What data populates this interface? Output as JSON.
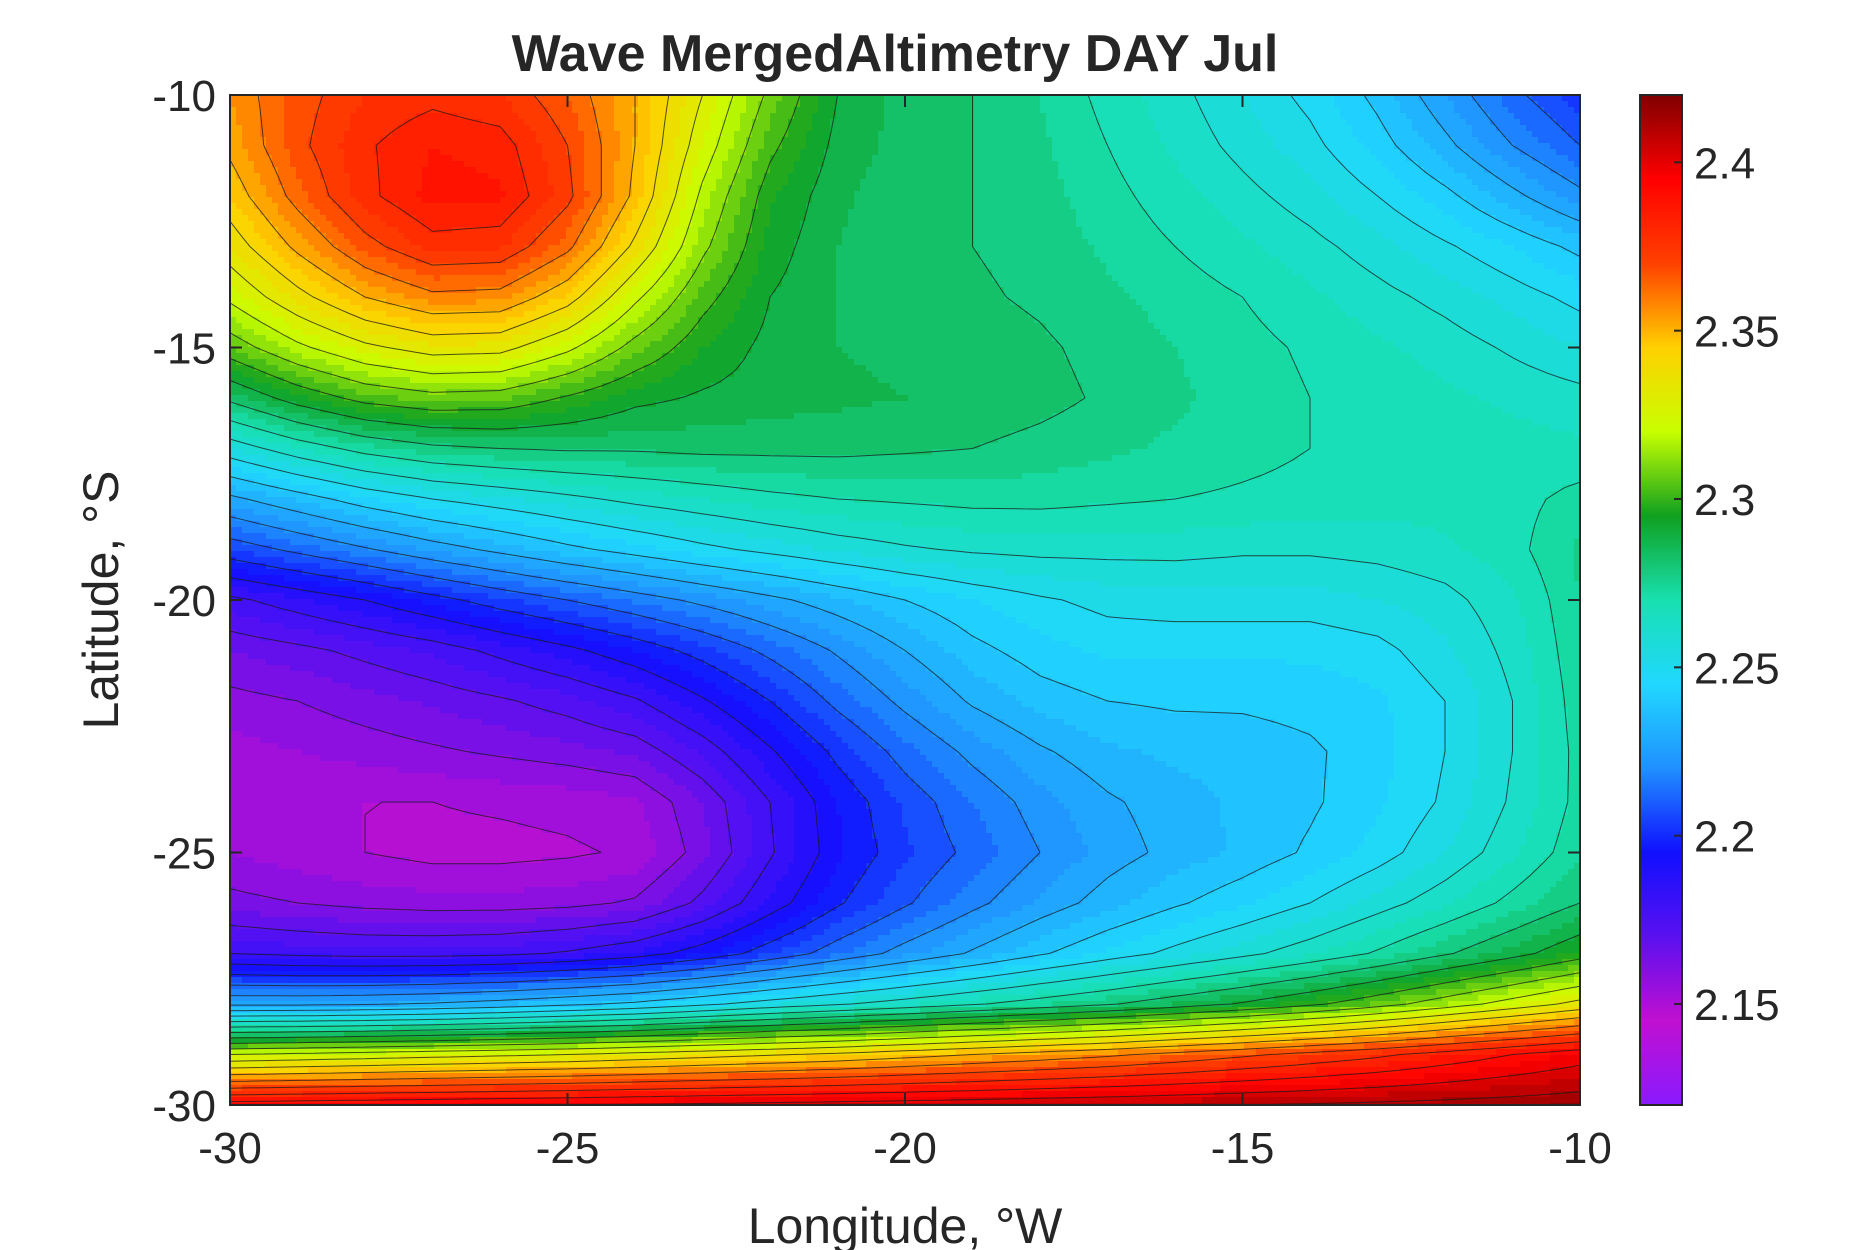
{
  "chart_data": {
    "type": "heatmap",
    "subtype": "filled-contour",
    "title": "Wave MergedAltimetry DAY Jul",
    "xlabel": "Longitude, °W",
    "ylabel": "Latitude, °S",
    "xlim": [
      -30,
      -10
    ],
    "ylim": [
      -30,
      -10
    ],
    "x_ticks": [
      -30,
      -25,
      -20,
      -15,
      -10
    ],
    "y_ticks": [
      -10,
      -15,
      -20,
      -25,
      -30
    ],
    "colorbar": {
      "range": [
        2.12,
        2.42
      ],
      "ticks": [
        2.15,
        2.2,
        2.25,
        2.3,
        2.35,
        2.4
      ],
      "colormap": [
        "#8a1aff",
        "#c010d0",
        "#5a10f0",
        "#1010ff",
        "#2090ff",
        "#20d8ff",
        "#18e0b0",
        "#10a020",
        "#c8ff00",
        "#ffd000",
        "#ff4000",
        "#ff0000",
        "#800000"
      ]
    },
    "grid_note": "Values on 1-degree grid; x from -30 to -10, y from -10 (first row) to -30 (last row)",
    "x": [
      -30,
      -29,
      -28,
      -27,
      -26,
      -25,
      -24,
      -23,
      -22,
      -21,
      -20,
      -19,
      -18,
      -17,
      -16,
      -15,
      -14,
      -13,
      -12,
      -11,
      -10
    ],
    "y": [
      -10,
      -11,
      -12,
      -13,
      -14,
      -15,
      -16,
      -17,
      -18,
      -19,
      -20,
      -21,
      -22,
      -23,
      -24,
      -25,
      -26,
      -27,
      -28,
      -29,
      -30
    ],
    "z": [
      [
        2.355,
        2.367,
        2.375,
        2.378,
        2.375,
        2.365,
        2.35,
        2.33,
        2.308,
        2.29,
        2.283,
        2.28,
        2.275,
        2.268,
        2.262,
        2.255,
        2.248,
        2.238,
        2.225,
        2.212,
        2.202
      ],
      [
        2.352,
        2.368,
        2.379,
        2.385,
        2.383,
        2.37,
        2.35,
        2.325,
        2.302,
        2.288,
        2.283,
        2.28,
        2.276,
        2.27,
        2.264,
        2.258,
        2.252,
        2.243,
        2.232,
        2.22,
        2.21
      ],
      [
        2.345,
        2.363,
        2.378,
        2.387,
        2.386,
        2.372,
        2.348,
        2.318,
        2.296,
        2.286,
        2.282,
        2.28,
        2.277,
        2.272,
        2.267,
        2.262,
        2.257,
        2.25,
        2.242,
        2.232,
        2.222
      ],
      [
        2.335,
        2.352,
        2.367,
        2.377,
        2.376,
        2.362,
        2.338,
        2.312,
        2.293,
        2.285,
        2.282,
        2.28,
        2.278,
        2.274,
        2.27,
        2.266,
        2.262,
        2.257,
        2.251,
        2.245,
        2.238
      ],
      [
        2.322,
        2.337,
        2.35,
        2.358,
        2.357,
        2.344,
        2.322,
        2.303,
        2.29,
        2.285,
        2.283,
        2.281,
        2.279,
        2.276,
        2.273,
        2.27,
        2.266,
        2.262,
        2.258,
        2.253,
        2.248
      ],
      [
        2.305,
        2.318,
        2.328,
        2.334,
        2.333,
        2.322,
        2.307,
        2.295,
        2.288,
        2.285,
        2.284,
        2.283,
        2.281,
        2.278,
        2.275,
        2.272,
        2.269,
        2.266,
        2.263,
        2.259,
        2.255
      ],
      [
        2.282,
        2.294,
        2.303,
        2.307,
        2.306,
        2.299,
        2.292,
        2.289,
        2.287,
        2.286,
        2.285,
        2.284,
        2.282,
        2.279,
        2.276,
        2.273,
        2.27,
        2.268,
        2.266,
        2.264,
        2.262
      ],
      [
        2.255,
        2.265,
        2.273,
        2.278,
        2.28,
        2.281,
        2.281,
        2.282,
        2.282,
        2.282,
        2.281,
        2.28,
        2.278,
        2.276,
        2.274,
        2.272,
        2.27,
        2.269,
        2.268,
        2.267,
        2.266
      ],
      [
        2.228,
        2.236,
        2.244,
        2.25,
        2.254,
        2.258,
        2.262,
        2.265,
        2.268,
        2.27,
        2.271,
        2.272,
        2.272,
        2.271,
        2.27,
        2.269,
        2.268,
        2.267,
        2.267,
        2.268,
        2.272
      ],
      [
        2.205,
        2.212,
        2.219,
        2.226,
        2.232,
        2.238,
        2.243,
        2.248,
        2.252,
        2.256,
        2.259,
        2.261,
        2.262,
        2.262,
        2.262,
        2.261,
        2.261,
        2.262,
        2.264,
        2.268,
        2.276
      ],
      [
        2.178,
        2.184,
        2.19,
        2.197,
        2.204,
        2.21,
        2.216,
        2.222,
        2.228,
        2.234,
        2.24,
        2.245,
        2.249,
        2.252,
        2.253,
        2.253,
        2.253,
        2.255,
        2.258,
        2.264,
        2.275
      ],
      [
        2.165,
        2.168,
        2.172,
        2.176,
        2.182,
        2.188,
        2.195,
        2.203,
        2.212,
        2.221,
        2.23,
        2.238,
        2.243,
        2.246,
        2.246,
        2.246,
        2.246,
        2.248,
        2.254,
        2.262,
        2.274
      ],
      [
        2.158,
        2.16,
        2.163,
        2.166,
        2.169,
        2.173,
        2.179,
        2.189,
        2.2,
        2.212,
        2.222,
        2.231,
        2.237,
        2.24,
        2.241,
        2.241,
        2.242,
        2.244,
        2.25,
        2.26,
        2.273
      ],
      [
        2.153,
        2.155,
        2.157,
        2.159,
        2.161,
        2.163,
        2.166,
        2.176,
        2.189,
        2.202,
        2.213,
        2.222,
        2.229,
        2.234,
        2.236,
        2.237,
        2.239,
        2.243,
        2.25,
        2.26,
        2.272
      ],
      [
        2.15,
        2.15,
        2.15,
        2.15,
        2.151,
        2.152,
        2.154,
        2.165,
        2.18,
        2.195,
        2.206,
        2.215,
        2.223,
        2.229,
        2.233,
        2.236,
        2.239,
        2.244,
        2.251,
        2.261,
        2.272
      ],
      [
        2.155,
        2.152,
        2.15,
        2.148,
        2.148,
        2.149,
        2.151,
        2.163,
        2.179,
        2.194,
        2.204,
        2.212,
        2.22,
        2.227,
        2.232,
        2.236,
        2.241,
        2.247,
        2.255,
        2.264,
        2.274
      ],
      [
        2.162,
        2.16,
        2.158,
        2.157,
        2.157,
        2.158,
        2.161,
        2.172,
        2.186,
        2.199,
        2.209,
        2.218,
        2.226,
        2.233,
        2.239,
        2.244,
        2.25,
        2.257,
        2.264,
        2.272,
        2.28
      ],
      [
        2.18,
        2.178,
        2.177,
        2.177,
        2.178,
        2.181,
        2.186,
        2.194,
        2.204,
        2.214,
        2.223,
        2.231,
        2.239,
        2.246,
        2.252,
        2.258,
        2.264,
        2.271,
        2.279,
        2.287,
        2.296
      ],
      [
        2.228,
        2.228,
        2.229,
        2.231,
        2.234,
        2.238,
        2.242,
        2.248,
        2.254,
        2.259,
        2.264,
        2.269,
        2.274,
        2.279,
        2.285,
        2.291,
        2.298,
        2.306,
        2.315,
        2.324,
        2.333
      ],
      [
        2.32,
        2.322,
        2.324,
        2.326,
        2.328,
        2.33,
        2.333,
        2.336,
        2.339,
        2.342,
        2.346,
        2.35,
        2.354,
        2.358,
        2.363,
        2.368,
        2.373,
        2.378,
        2.384,
        2.39,
        2.396
      ],
      [
        2.395,
        2.396,
        2.397,
        2.398,
        2.399,
        2.4,
        2.401,
        2.402,
        2.403,
        2.404,
        2.405,
        2.406,
        2.407,
        2.408,
        2.409,
        2.41,
        2.411,
        2.412,
        2.413,
        2.414,
        2.415
      ]
    ]
  }
}
